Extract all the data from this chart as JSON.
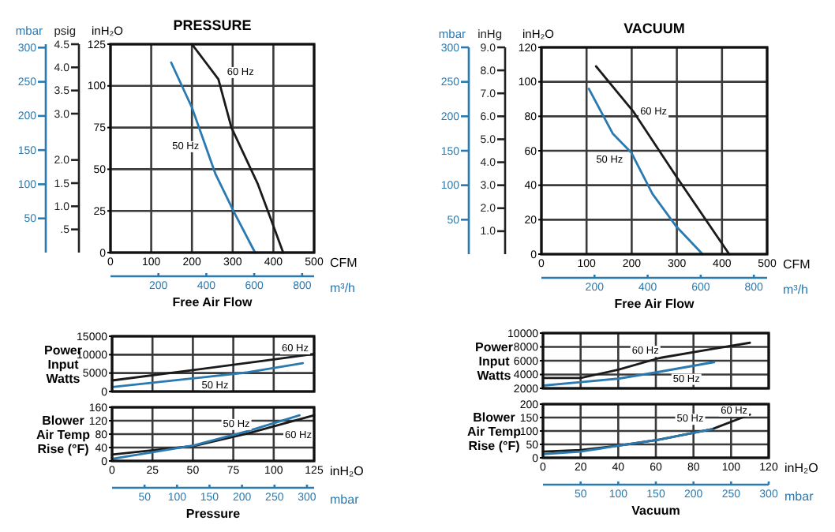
{
  "chart_data": [
    {
      "type": "line",
      "title": "PRESSURE",
      "xlabel": "CFM",
      "ylabel": "inH₂O",
      "y2label": "psig",
      "y3label": "mbar",
      "x2label": "m³/h",
      "xlim": [
        0,
        500
      ],
      "xticks": [
        0,
        100,
        200,
        300,
        400,
        500
      ],
      "ylim": [
        0,
        125
      ],
      "yticks": [
        0,
        25,
        50,
        75,
        100,
        125
      ],
      "y2lim": [
        0,
        4.5
      ],
      "y2ticks": [
        {
          "value": 0.5,
          "label": ".5"
        },
        {
          "value": 1,
          "label": "1.0"
        },
        {
          "value": 1.5,
          "label": "1.5"
        },
        {
          "value": 2,
          "label": "2.0"
        },
        {
          "value": 3,
          "label": "3.0"
        },
        {
          "value": 3.5,
          "label": "3.5"
        },
        {
          "value": 4,
          "label": "4.0"
        },
        {
          "value": 4.5,
          "label": "4.5"
        }
      ],
      "y3lim": [
        0,
        305
      ],
      "y3ticks": [
        50,
        100,
        150,
        200,
        250,
        300
      ],
      "x2lim": [
        0,
        850
      ],
      "x2ticks": [
        200,
        400,
        600,
        800
      ],
      "grid": true,
      "series": [
        {
          "name": "60 Hz",
          "color": "#1a1a1a",
          "x": [
            200,
            265,
            297,
            362,
            400,
            424
          ],
          "values": [
            125,
            104,
            75,
            41,
            16,
            0
          ]
        },
        {
          "name": "50 Hz",
          "color": "#2a7ab0",
          "x": [
            149,
            200,
            258,
            304,
            355
          ],
          "values": [
            114,
            87,
            47,
            24,
            0
          ]
        }
      ],
      "annotations": [
        "Free Air Flow"
      ]
    },
    {
      "type": "line",
      "title": "VACUUM",
      "xlabel": "CFM",
      "ylabel": "inH₂O",
      "y2label": "inHg",
      "y3label": "mbar",
      "x2label": "m³/h",
      "xlim": [
        0,
        500
      ],
      "xticks": [
        0,
        100,
        200,
        300,
        400,
        500
      ],
      "ylim": [
        0,
        120
      ],
      "yticks": [
        0,
        20,
        40,
        60,
        80,
        100,
        120
      ],
      "y2lim": [
        0,
        9
      ],
      "y2ticks": [
        {
          "value": 1,
          "label": "1.0"
        },
        {
          "value": 2,
          "label": "2.0"
        },
        {
          "value": 3,
          "label": "3.0"
        },
        {
          "value": 4,
          "label": "4.0"
        },
        {
          "value": 5,
          "label": "5.0"
        },
        {
          "value": 6,
          "label": "6.0"
        },
        {
          "value": 7,
          "label": "7.0"
        },
        {
          "value": 8,
          "label": "8.0"
        },
        {
          "value": 9,
          "label": "9.0"
        }
      ],
      "y3lim": [
        0,
        300
      ],
      "y3ticks": [
        50,
        100,
        150,
        200,
        250,
        300
      ],
      "x2lim": [
        0,
        850
      ],
      "x2ticks": [
        200,
        400,
        600,
        800
      ],
      "grid": true,
      "series": [
        {
          "name": "60 Hz",
          "color": "#1a1a1a",
          "x": [
            121,
            203,
            299,
            416
          ],
          "values": [
            109,
            83,
            45,
            0
          ]
        },
        {
          "name": "50 Hz",
          "color": "#2a7ab0",
          "x": [
            105,
            158,
            199,
            246,
            299,
            357
          ],
          "values": [
            96,
            70,
            59,
            35,
            16,
            0
          ]
        }
      ],
      "annotations": [
        "Free Air Flow"
      ]
    },
    {
      "type": "line",
      "ylabel": "Power Input Watts",
      "xlim": [
        0,
        125
      ],
      "xticks": [
        0,
        25,
        50,
        75,
        100,
        125
      ],
      "ylim": [
        0,
        15000
      ],
      "yticks": [
        0,
        5000,
        10000,
        15000
      ],
      "grid": true,
      "tick_labels": "y",
      "series": [
        {
          "name": "60 Hz",
          "color": "#1a1a1a",
          "x": [
            0,
            50,
            100,
            125
          ],
          "values": [
            3000,
            5800,
            8700,
            10200
          ]
        },
        {
          "name": "50 Hz",
          "color": "#2a7ab0",
          "x": [
            0,
            51,
            84,
            118
          ],
          "values": [
            1200,
            3600,
            5200,
            7700
          ]
        }
      ]
    },
    {
      "type": "line",
      "ylabel": "Power Input Watts",
      "xlim": [
        0,
        120
      ],
      "xticks": [
        0,
        20,
        40,
        60,
        80,
        100,
        120
      ],
      "ylim": [
        2000,
        10000
      ],
      "yticks": [
        2000,
        4000,
        6000,
        8000,
        10000
      ],
      "grid": true,
      "tick_labels": "y",
      "series": [
        {
          "name": "60 Hz",
          "color": "#1a1a1a",
          "x": [
            0,
            20,
            40,
            62,
            90,
            110
          ],
          "values": [
            3500,
            3500,
            4700,
            6400,
            7700,
            8600
          ]
        },
        {
          "name": "50 Hz",
          "color": "#2a7ab0",
          "x": [
            0,
            20,
            40,
            62,
            91
          ],
          "values": [
            2400,
            2900,
            3400,
            4400,
            5800
          ]
        }
      ]
    },
    {
      "type": "line",
      "ylabel": "Blower Air Temp Rise (°F)",
      "xlabel": "inH₂O",
      "x2label": "mbar",
      "xlim": [
        0,
        125
      ],
      "xticks": [
        0,
        25,
        50,
        75,
        100,
        125
      ],
      "ylim": [
        0,
        160
      ],
      "yticks": [
        0,
        40,
        80,
        120,
        160
      ],
      "x2lim": [
        0,
        311
      ],
      "x2ticks": [
        50,
        100,
        150,
        200,
        250,
        300
      ],
      "grid": true,
      "series": [
        {
          "name": "60 Hz",
          "color": "#1a1a1a",
          "x": [
            0,
            51,
            84,
            125
          ],
          "values": [
            19,
            45,
            82,
            136
          ]
        },
        {
          "name": "50 Hz",
          "color": "#2a7ab0",
          "x": [
            0,
            51,
            84,
            116
          ],
          "values": [
            6,
            47,
            89,
            136
          ]
        }
      ],
      "annotations": [
        "Pressure"
      ]
    },
    {
      "type": "line",
      "ylabel": "Blower Air Temp Rise (°F)",
      "xlabel": "inH₂O",
      "x2label": "mbar",
      "xlim": [
        0,
        120
      ],
      "xticks": [
        0,
        20,
        40,
        60,
        80,
        100,
        120
      ],
      "ylim": [
        0,
        200
      ],
      "yticks": [
        0,
        50,
        100,
        150,
        200
      ],
      "x2lim": [
        0,
        300
      ],
      "x2ticks": [
        50,
        100,
        150,
        200,
        250,
        300
      ],
      "grid": true,
      "series": [
        {
          "name": "60 Hz",
          "color": "#1a1a1a",
          "x": [
            0,
            20,
            40,
            62,
            90,
            110
          ],
          "values": [
            23,
            29,
            45,
            68,
            107,
            161
          ]
        },
        {
          "name": "50 Hz",
          "color": "#2a7ab0",
          "x": [
            0,
            20,
            40,
            62,
            90
          ],
          "values": [
            14,
            23,
            45,
            68,
            107
          ]
        }
      ],
      "annotations": [
        "Vacuum"
      ]
    }
  ]
}
